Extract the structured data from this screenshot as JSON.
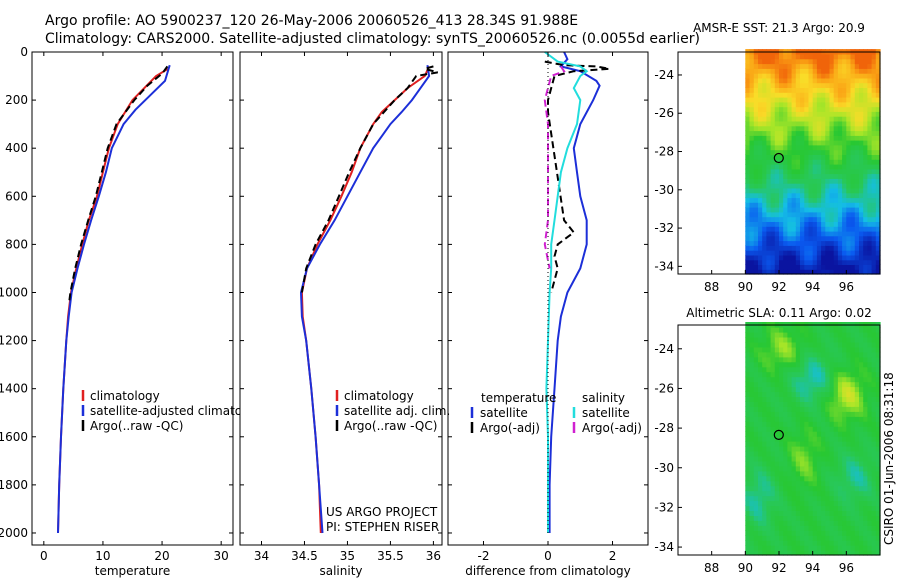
{
  "title": {
    "line1": "Argo profile: AO 5900237_120 26-May-2006 20060526_413 28.34S 91.988E",
    "line2": "Climatology: CARS2000. Satellite-adjusted climatology: synTS_20060526.nc (0.0055d earlier)"
  },
  "colors": {
    "climatology": "#e02020",
    "satellite": "#1c2fd8",
    "argo": "#000000",
    "salinity_satellite": "#22dddd",
    "salinity_argo": "#d020d0"
  },
  "chart_data": [
    {
      "type": "line",
      "name": "temperature-panel",
      "xlabel": "temperature",
      "ylabel": "",
      "xlim": [
        -2,
        32
      ],
      "ylim": [
        2050,
        0
      ],
      "xticks": [
        "0",
        "10",
        "20",
        "30"
      ],
      "xtick_values": [
        0,
        10,
        20,
        30
      ],
      "yticks": [
        "0",
        "200",
        "400",
        "600",
        "800",
        "1000",
        "1200",
        "1400",
        "1600",
        "1800",
        "2000"
      ],
      "ytick_values": [
        0,
        200,
        400,
        600,
        800,
        1000,
        1200,
        1400,
        1600,
        1800,
        2000
      ],
      "legend": [
        "climatology",
        "satellite-adjusted climatology",
        "Argo(..raw -QC)"
      ],
      "series": [
        {
          "name": "climatology",
          "color_key": "climatology",
          "dash": "solid",
          "depth": [
            70,
            100,
            150,
            200,
            300,
            400,
            500,
            600,
            700,
            800,
            900,
            1000,
            1100,
            1200,
            1400,
            1600,
            1800,
            2000
          ],
          "values": [
            21,
            19,
            17,
            15,
            12.5,
            11,
            10,
            9,
            7.6,
            6.5,
            5.5,
            4.6,
            4.1,
            3.8,
            3.3,
            2.9,
            2.6,
            2.4
          ]
        },
        {
          "name": "satellite",
          "color_key": "satellite",
          "dash": "solid",
          "depth": [
            55,
            120,
            180,
            240,
            300,
            400,
            500,
            600,
            700,
            800,
            900,
            1000,
            1100,
            1200,
            1400,
            1600,
            1800,
            2000
          ],
          "values": [
            21.3,
            20.5,
            18,
            15.5,
            13.5,
            11.5,
            10.5,
            9.3,
            8,
            6.8,
            5.7,
            4.7,
            4.2,
            3.8,
            3.3,
            2.9,
            2.6,
            2.4
          ]
        },
        {
          "name": "Argo",
          "color_key": "argo",
          "dash": "dashed",
          "depth": [
            60,
            90,
            140,
            200,
            300,
            400,
            500,
            600,
            700,
            800,
            900,
            1000,
            1040
          ],
          "values": [
            20.9,
            20,
            17.5,
            15.3,
            12.3,
            10.8,
            9.8,
            8.8,
            7.5,
            6.3,
            5.3,
            4.5,
            4.3
          ]
        }
      ]
    },
    {
      "type": "line",
      "name": "salinity-panel",
      "xlabel": "salinity",
      "xlim": [
        33.75,
        36.1
      ],
      "ylim": [
        2050,
        0
      ],
      "xticks": [
        "34",
        "34.5",
        "35",
        "35.5",
        "36"
      ],
      "xtick_values": [
        34,
        34.5,
        35,
        35.5,
        36
      ],
      "legend": [
        "climatology",
        "satellite adj. clim.",
        "Argo(..raw -QC)"
      ],
      "series": [
        {
          "name": "climatology",
          "color_key": "climatology",
          "dash": "solid",
          "depth": [
            60,
            100,
            150,
            200,
            250,
            300,
            400,
            500,
            600,
            700,
            800,
            900,
            1000,
            1100,
            1200,
            1400,
            1600,
            1800,
            2000
          ],
          "values": [
            35.95,
            35.9,
            35.7,
            35.55,
            35.4,
            35.3,
            35.15,
            35.05,
            34.93,
            34.8,
            34.65,
            34.53,
            34.47,
            34.48,
            34.52,
            34.58,
            34.63,
            34.67,
            34.69
          ]
        },
        {
          "name": "satellite",
          "color_key": "satellite",
          "dash": "solid",
          "depth": [
            55,
            100,
            150,
            200,
            250,
            300,
            350,
            400,
            500,
            600,
            700,
            800,
            900,
            1000,
            1100,
            1200,
            1400,
            1600,
            1800,
            2000
          ],
          "values": [
            35.93,
            35.95,
            35.85,
            35.75,
            35.63,
            35.5,
            35.4,
            35.3,
            35.15,
            35.0,
            34.85,
            34.68,
            34.53,
            34.46,
            34.47,
            34.52,
            34.58,
            34.63,
            34.67,
            34.71
          ]
        },
        {
          "name": "Argo",
          "color_key": "argo",
          "dash": "dashed",
          "depth": [
            60,
            70,
            85,
            100,
            150,
            200,
            300,
            400,
            500,
            600,
            700,
            800,
            900,
            1000
          ],
          "values": [
            36.0,
            35.9,
            36.05,
            35.8,
            35.7,
            35.55,
            35.3,
            35.15,
            35.02,
            34.9,
            34.78,
            34.63,
            34.52,
            34.47
          ]
        }
      ],
      "annotation": [
        "US ARGO PROJECT",
        "PI: STEPHEN RISER"
      ]
    },
    {
      "type": "line",
      "name": "difference-panel",
      "xlabel": "difference from climatology",
      "xlim": [
        -3.1,
        3.1
      ],
      "ylim": [
        2050,
        0
      ],
      "xticks": [
        "-2",
        "0",
        "2"
      ],
      "xtick_values": [
        -2,
        0,
        2
      ],
      "legend_headers": [
        "temperature",
        "salinity"
      ],
      "legend": [
        "satellite",
        "Argo(-adj)",
        "satellite",
        "Argo(-adj)"
      ],
      "series": [
        {
          "name": "temperature satellite",
          "color_key": "satellite",
          "dash": "solid",
          "depth": [
            0,
            30,
            60,
            80,
            120,
            140,
            200,
            300,
            400,
            500,
            600,
            700,
            800,
            900,
            1000,
            1100,
            1200,
            1400,
            1600,
            1800,
            2000
          ],
          "values": [
            0.5,
            0.6,
            0.4,
            1.0,
            1.5,
            1.6,
            1.4,
            1.0,
            0.8,
            0.9,
            1.0,
            1.2,
            1.2,
            1.0,
            0.6,
            0.4,
            0.3,
            0.2,
            0.1,
            0.05,
            0.05
          ]
        },
        {
          "name": "temperature Argo",
          "color_key": "argo",
          "dash": "dashed",
          "depth": [
            40,
            55,
            60,
            70,
            80,
            100,
            150,
            200,
            250,
            700,
            750,
            800,
            850,
            900,
            1000
          ],
          "values": [
            -0.1,
            0.5,
            1.5,
            1.9,
            0.8,
            0.2,
            0.1,
            0.0,
            0.0,
            0.5,
            0.8,
            0.3,
            0.2,
            0.3,
            0.1
          ]
        },
        {
          "name": "salinity satellite",
          "color_key": "salinity_satellite",
          "dash": "solid",
          "depth": [
            0,
            40,
            60,
            80,
            100,
            150,
            200,
            300,
            400,
            500,
            600,
            700,
            800,
            900,
            1000,
            1200,
            1400,
            1600,
            2000
          ],
          "values": [
            -0.1,
            0.3,
            1.0,
            1.2,
            1.0,
            0.8,
            1.0,
            0.9,
            0.6,
            0.4,
            0.3,
            0.2,
            0.1,
            0.1,
            0.05,
            0.0,
            -0.05,
            0.0,
            0.0
          ]
        },
        {
          "name": "salinity Argo",
          "color_key": "salinity_argo",
          "dash": "dashed",
          "depth": [
            60,
            80,
            100,
            150,
            200,
            300,
            400,
            500,
            700,
            800,
            900
          ],
          "values": [
            0.4,
            0.5,
            0.1,
            0.0,
            -0.1,
            0.0,
            0.0,
            0.0,
            0.0,
            -0.1,
            0.05
          ]
        },
        {
          "name": "zero line",
          "color_key": "argo",
          "dash": "dotted",
          "depth": [
            0,
            2000
          ],
          "values": [
            0,
            0
          ]
        }
      ]
    },
    {
      "type": "heatmap",
      "name": "sst-map",
      "title": "AMSR-E SST: 21.3 Argo: 20.9",
      "xlim": [
        86,
        98
      ],
      "ylim": [
        -34.4,
        -22.8
      ],
      "xticks": [
        "88",
        "90",
        "92",
        "94",
        "96"
      ],
      "xtick_values": [
        88,
        90,
        92,
        94,
        96
      ],
      "yticks": [
        "-24",
        "-26",
        "-28",
        "-30",
        "-32",
        "-34"
      ],
      "ytick_values": [
        -24,
        -26,
        -28,
        -30,
        -32,
        -34
      ],
      "data_lon_start": 90,
      "marker": {
        "lon": 91.988,
        "lat": -28.34
      }
    },
    {
      "type": "heatmap",
      "name": "sla-map",
      "title": "Altimetric SLA: 0.11 Argo: 0.02",
      "xlim": [
        86,
        98
      ],
      "ylim": [
        -34.4,
        -22.8
      ],
      "xticks": [
        "88",
        "90",
        "92",
        "94",
        "96"
      ],
      "xtick_values": [
        88,
        90,
        92,
        94,
        96
      ],
      "yticks": [
        "-24",
        "-26",
        "-28",
        "-30",
        "-32",
        "-34"
      ],
      "ytick_values": [
        -24,
        -26,
        -28,
        -30,
        -32,
        -34
      ],
      "data_lon_start": 90,
      "marker": {
        "lon": 91.988,
        "lat": -28.34
      }
    }
  ],
  "credit": "CSIRO 01-Jun-2006 08:31:18"
}
